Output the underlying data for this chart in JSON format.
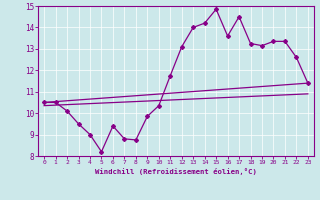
{
  "xlabel": "Windchill (Refroidissement éolien,°C)",
  "xlim": [
    -0.5,
    23.5
  ],
  "ylim": [
    8,
    15
  ],
  "xticks": [
    0,
    1,
    2,
    3,
    4,
    5,
    6,
    7,
    8,
    9,
    10,
    11,
    12,
    13,
    14,
    15,
    16,
    17,
    18,
    19,
    20,
    21,
    22,
    23
  ],
  "yticks": [
    8,
    9,
    10,
    11,
    12,
    13,
    14,
    15
  ],
  "bg_color": "#cce8ea",
  "line_color": "#880088",
  "line1_x": [
    0,
    1,
    2,
    3,
    4,
    5,
    6,
    7,
    8,
    9,
    10,
    11,
    12,
    13,
    14,
    15,
    16,
    17,
    18,
    19,
    20,
    21,
    22,
    23
  ],
  "line1_y": [
    10.5,
    10.5,
    10.1,
    9.5,
    9.0,
    8.2,
    9.4,
    8.8,
    8.75,
    9.85,
    10.35,
    11.75,
    13.1,
    14.0,
    14.2,
    14.85,
    13.6,
    14.5,
    13.25,
    13.15,
    13.35,
    13.35,
    12.6,
    11.4
  ],
  "line2_x": [
    0,
    23
  ],
  "line2_y": [
    10.5,
    11.4
  ],
  "line3_x": [
    0,
    23
  ],
  "line3_y": [
    10.35,
    10.9
  ]
}
